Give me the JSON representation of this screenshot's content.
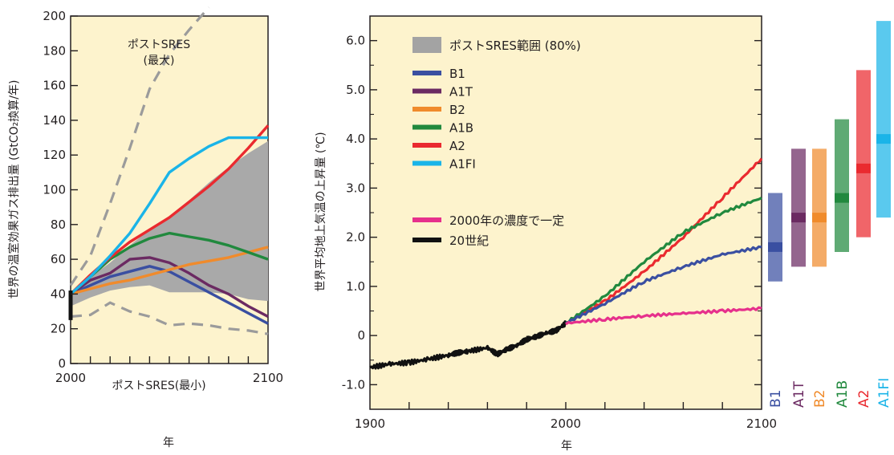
{
  "chart_data": [
    {
      "type": "line",
      "xlabel": "年",
      "ylabel": "世界の温室効果ガス排出量 (GtCO₂換算/年)",
      "xlim": [
        2000,
        2100
      ],
      "ylim": [
        0,
        200
      ],
      "x_ticks": [
        "2000",
        "2100"
      ],
      "y_ticks": [
        "0",
        "20",
        "40",
        "60",
        "80",
        "100",
        "120",
        "140",
        "160",
        "180",
        "200"
      ],
      "annotations": {
        "max": "ポストSRES",
        "max2": "(最大)",
        "min": "ポストSRES(最小)"
      },
      "band": {
        "x": [
          2000,
          2010,
          2020,
          2030,
          2040,
          2050,
          2060,
          2070,
          2080,
          2090,
          2100
        ],
        "low": [
          33,
          38,
          42,
          44,
          45,
          41,
          41,
          41,
          40,
          37,
          36
        ],
        "high": [
          40,
          50,
          58,
          68,
          77,
          85,
          94,
          104,
          113,
          121,
          128
        ]
      },
      "dashed": [
        {
          "x": [
            2000,
            2010,
            2020,
            2030,
            2040,
            2050,
            2060,
            2070
          ],
          "values": [
            45,
            62,
            92,
            124,
            158,
            178,
            192,
            205
          ]
        },
        {
          "x": [
            2000,
            2010,
            2020,
            2030,
            2040,
            2050,
            2060,
            2070,
            2080,
            2090,
            2100
          ],
          "values": [
            27,
            28,
            35,
            30,
            27,
            22,
            23,
            22,
            20,
            19,
            17
          ]
        }
      ],
      "series": [
        {
          "name": "B1",
          "color": "#3a4fa1",
          "x": [
            2000,
            2010,
            2020,
            2030,
            2040,
            2050,
            2060,
            2070,
            2080,
            2090,
            2100
          ],
          "values": [
            40,
            45,
            50,
            53,
            56,
            53,
            47,
            41,
            35,
            29,
            23
          ]
        },
        {
          "name": "A1T",
          "color": "#6b2a62",
          "x": [
            2000,
            2010,
            2020,
            2030,
            2040,
            2050,
            2060,
            2070,
            2080,
            2090,
            2100
          ],
          "values": [
            40,
            48,
            52,
            60,
            61,
            58,
            52,
            45,
            40,
            33,
            27
          ]
        },
        {
          "name": "B2",
          "color": "#f08b2c",
          "x": [
            2000,
            2010,
            2020,
            2030,
            2040,
            2050,
            2060,
            2070,
            2080,
            2090,
            2100
          ],
          "values": [
            40,
            43,
            46,
            48,
            51,
            54,
            57,
            59,
            61,
            64,
            67
          ]
        },
        {
          "name": "A1B",
          "color": "#21893e",
          "x": [
            2000,
            2010,
            2020,
            2030,
            2040,
            2050,
            2060,
            2070,
            2080,
            2090,
            2100
          ],
          "values": [
            40,
            50,
            60,
            67,
            72,
            75,
            73,
            71,
            68,
            64,
            60
          ]
        },
        {
          "name": "A2",
          "color": "#ea2a2f",
          "x": [
            2000,
            2010,
            2020,
            2030,
            2040,
            2050,
            2060,
            2070,
            2080,
            2090,
            2100
          ],
          "values": [
            40,
            51,
            61,
            70,
            77,
            84,
            93,
            102,
            112,
            124,
            137
          ]
        },
        {
          "name": "A1FI",
          "color": "#1ab4e8",
          "x": [
            2000,
            2010,
            2020,
            2030,
            2040,
            2050,
            2060,
            2070,
            2080,
            2090,
            2100
          ],
          "values": [
            40,
            50,
            62,
            75,
            92,
            110,
            118,
            125,
            130,
            130,
            130
          ]
        }
      ]
    },
    {
      "type": "line",
      "xlabel": "年",
      "ylabel": "世界平均地上気温の上昇量 (℃)",
      "xlim": [
        1900,
        2100
      ],
      "ylim": [
        -1.5,
        6.5
      ],
      "x_ticks": [
        "1900",
        "2000",
        "2100"
      ],
      "y_ticks": [
        "-1.0",
        "0",
        "1.0",
        "2.0",
        "3.0",
        "4.0",
        "5.0",
        "6.0"
      ],
      "legend": {
        "band_label": "ポストSRES範囲 (80%)",
        "band_color": "#a3a3a3",
        "items": [
          {
            "label": "B1",
            "color": "#3a4fa1"
          },
          {
            "label": "A1T",
            "color": "#6b2a62"
          },
          {
            "label": "B2",
            "color": "#f08b2c"
          },
          {
            "label": "A1B",
            "color": "#21893e"
          },
          {
            "label": "A2",
            "color": "#ea2a2f"
          },
          {
            "label": "A1FI",
            "color": "#1ab4e8"
          }
        ],
        "extra_items": [
          {
            "label": "2000年の濃度で一定",
            "color": "#e6308c"
          },
          {
            "label": "20世紀",
            "color": "#111111"
          }
        ]
      },
      "series": [
        {
          "name": "20世紀",
          "color": "#111111",
          "x": [
            1900,
            1910,
            1920,
            1930,
            1940,
            1945,
            1950,
            1960,
            1965,
            1970,
            1975,
            1980,
            1985,
            1990,
            1995,
            2000
          ],
          "values": [
            -0.65,
            -0.58,
            -0.55,
            -0.48,
            -0.4,
            -0.35,
            -0.32,
            -0.25,
            -0.38,
            -0.28,
            -0.2,
            -0.08,
            -0.02,
            0.05,
            0.1,
            0.25
          ]
        },
        {
          "name": "A2",
          "color": "#ea2a2f",
          "x": [
            2000,
            2020,
            2040,
            2060,
            2080,
            2100
          ],
          "values": [
            0.25,
            0.7,
            1.3,
            2.0,
            2.8,
            3.6
          ]
        },
        {
          "name": "A1B",
          "color": "#21893e",
          "x": [
            2000,
            2020,
            2040,
            2060,
            2080,
            2100
          ],
          "values": [
            0.25,
            0.8,
            1.5,
            2.1,
            2.5,
            2.8
          ]
        },
        {
          "name": "B1",
          "color": "#3a4fa1",
          "x": [
            2000,
            2020,
            2040,
            2060,
            2080,
            2100
          ],
          "values": [
            0.25,
            0.65,
            1.1,
            1.4,
            1.65,
            1.8
          ]
        },
        {
          "name": "2000年の濃度で一定",
          "color": "#e6308c",
          "x": [
            2000,
            2020,
            2040,
            2060,
            2080,
            2100
          ],
          "values": [
            0.25,
            0.33,
            0.4,
            0.45,
            0.5,
            0.55
          ]
        }
      ]
    },
    {
      "type": "bar",
      "ylim": [
        -1.5,
        6.5
      ],
      "categories": [
        "B1",
        "A1T",
        "B2",
        "A1B",
        "A2",
        "A1FI"
      ],
      "bars": [
        {
          "name": "B1",
          "color": "#3a4fa1",
          "low": 1.1,
          "high": 2.9,
          "best": 1.8
        },
        {
          "name": "A1T",
          "color": "#6b2a62",
          "low": 1.4,
          "high": 3.8,
          "best": 2.4
        },
        {
          "name": "B2",
          "color": "#f08b2c",
          "low": 1.4,
          "high": 3.8,
          "best": 2.4
        },
        {
          "name": "A1B",
          "color": "#21893e",
          "low": 1.7,
          "high": 4.4,
          "best": 2.8
        },
        {
          "name": "A2",
          "color": "#ea2a2f",
          "low": 2.0,
          "high": 5.4,
          "best": 3.4
        },
        {
          "name": "A1FI",
          "color": "#1ab4e8",
          "low": 2.4,
          "high": 6.4,
          "best": 4.0
        }
      ]
    }
  ]
}
